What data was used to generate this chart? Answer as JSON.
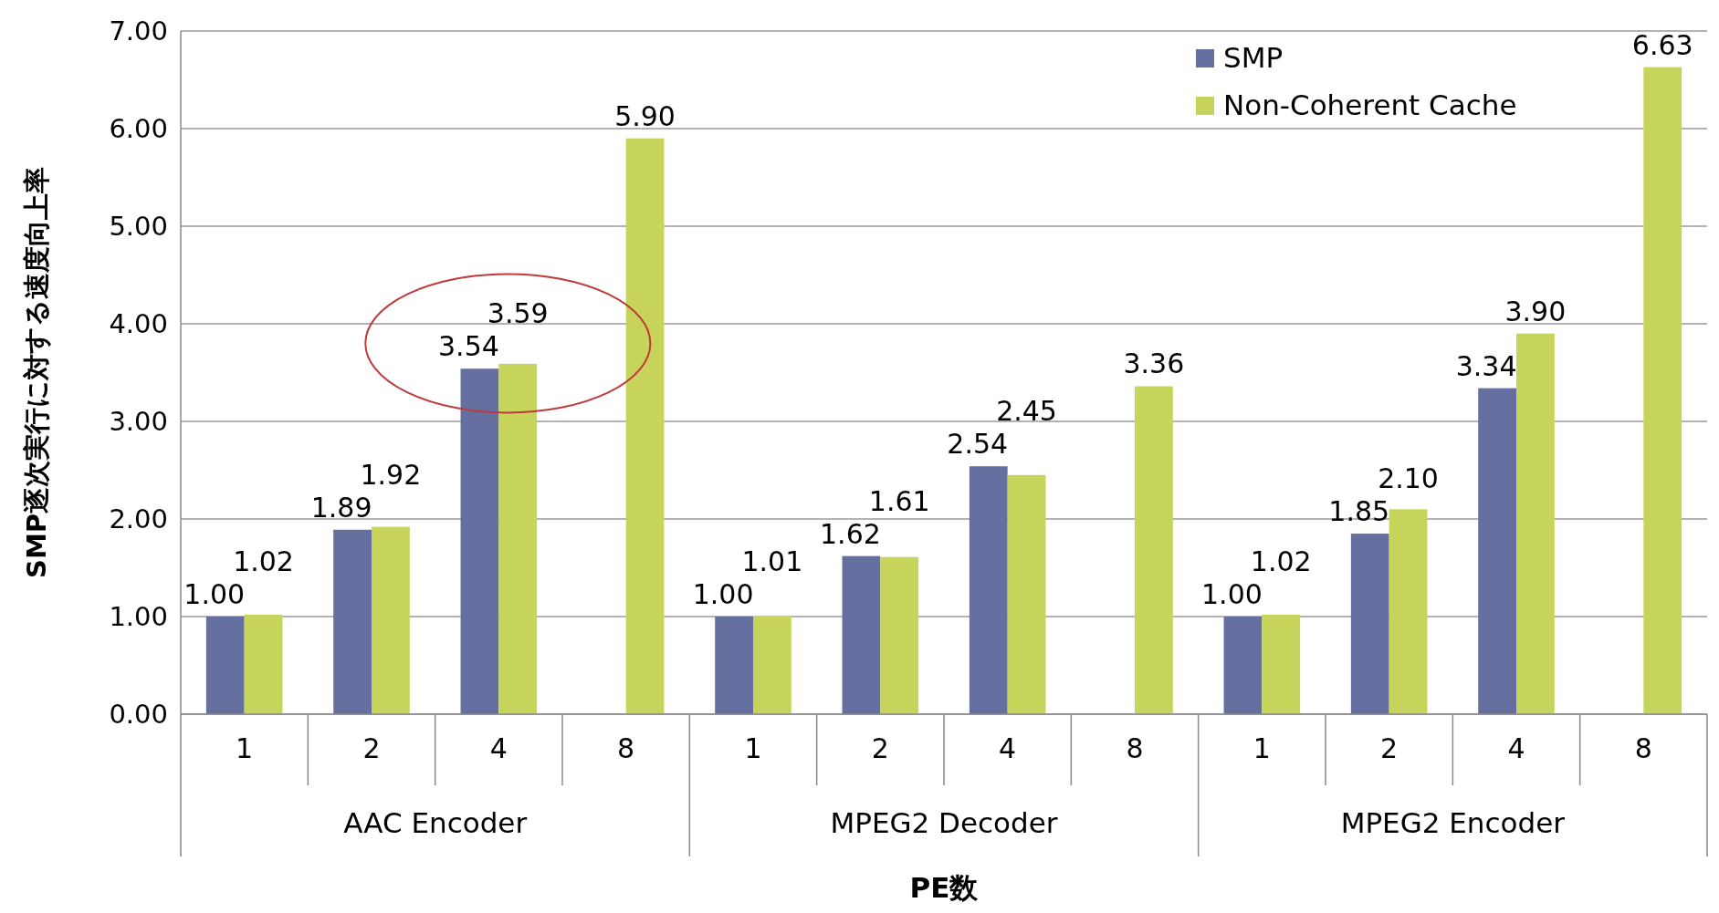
{
  "chart_data": {
    "type": "bar",
    "ylabel": "SMP逐次実行に対する速度向上率",
    "xlabel": "PE数",
    "categories": [
      "1",
      "2",
      "4",
      "8",
      "1",
      "2",
      "4",
      "8",
      "1",
      "2",
      "4",
      "8"
    ],
    "annotations": [
      "AAC Encoder",
      "MPEG2 Decoder",
      "MPEG2 Encoder"
    ],
    "series": [
      {
        "name": "SMP",
        "color": "#6670a0",
        "values": [
          1.0,
          1.89,
          3.54,
          null,
          1.0,
          1.62,
          2.54,
          null,
          1.0,
          1.85,
          3.34,
          null
        ],
        "value_labels": [
          "1.00",
          "1.89",
          "3.54",
          null,
          "1.00",
          "1.62",
          "2.54",
          null,
          "1.00",
          "1.85",
          "3.34",
          null
        ]
      },
      {
        "name": "Non-Coherent Cache",
        "color": "#c6d45c",
        "values": [
          1.02,
          1.92,
          3.59,
          5.9,
          1.01,
          1.61,
          2.45,
          3.36,
          1.02,
          2.1,
          3.9,
          6.63
        ],
        "value_labels": [
          "1.02",
          "1.92",
          "3.59",
          "5.90",
          "1.01",
          "1.61",
          "2.45",
          "3.36",
          "1.02",
          "2.10",
          "3.90",
          "6.63"
        ]
      }
    ],
    "ylim": [
      0,
      7
    ],
    "yticks": [
      {
        "value": 0,
        "label": "0.00"
      },
      {
        "value": 1,
        "label": "1.00"
      },
      {
        "value": 2,
        "label": "2.00"
      },
      {
        "value": 3,
        "label": "3.00"
      },
      {
        "value": 4,
        "label": "4.00"
      },
      {
        "value": 5,
        "label": "5.00"
      },
      {
        "value": 6,
        "label": "6.00"
      },
      {
        "value": 7,
        "label": "7.00"
      }
    ],
    "grid": "y",
    "legend": "top right"
  }
}
